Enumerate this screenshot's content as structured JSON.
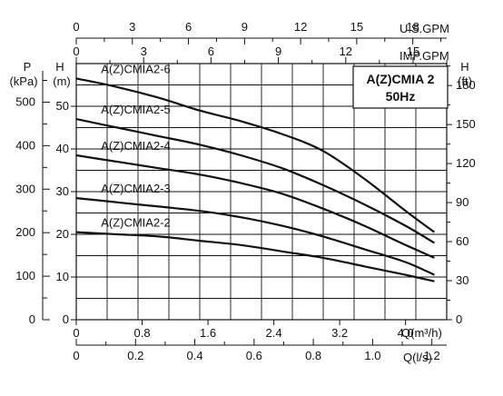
{
  "chart_data": {
    "type": "line",
    "title": "A(Z)CMIA 2",
    "subtitle": "50Hz",
    "units": {
      "pressure": "P",
      "pressure_unit": "(kPa)",
      "head": "H",
      "head_m_unit": "(m)",
      "head_ft": "H",
      "head_ft_unit": "(ft)",
      "usgpm": "U.S.GPM",
      "impgpm": "IMP.GPM",
      "q_m3h": "Q(m³/h)",
      "q_ls": "Q(l/s)"
    },
    "axes": {
      "x_m3h": {
        "min": 0,
        "max": 4.5,
        "ticks": [
          "0",
          "0.8",
          "1.6",
          "2.4",
          "3.2",
          "4.0"
        ]
      },
      "x_ls": {
        "ticks": [
          "0",
          "0.2",
          "0.4",
          "0.6",
          "0.8",
          "1.0",
          "1.2"
        ]
      },
      "x_usgpm": {
        "ticks": [
          "0",
          "3",
          "6",
          "9",
          "12",
          "15",
          "18"
        ]
      },
      "x_impgpm": {
        "ticks": [
          "0",
          "3",
          "6",
          "9",
          "12",
          "15"
        ]
      },
      "y_head_m": {
        "min": 0,
        "max": 60,
        "ticks": [
          "0",
          "10",
          "20",
          "30",
          "40",
          "50"
        ]
      },
      "y_pressure_kpa": {
        "ticks": [
          "0",
          "100",
          "200",
          "300",
          "400",
          "500"
        ]
      },
      "y_head_ft": {
        "ticks": [
          "0",
          "30",
          "60",
          "90",
          "120",
          "150",
          "180"
        ]
      }
    },
    "grid": true,
    "series": [
      {
        "name": "A(Z)CMIA2-6",
        "x": [
          0,
          0.5,
          1.0,
          1.5,
          2.0,
          2.5,
          3.0,
          3.5,
          4.0,
          4.35
        ],
        "y": [
          56.5,
          54.5,
          52.0,
          49.0,
          46.5,
          43.5,
          39.5,
          33.0,
          25.5,
          20.5
        ]
      },
      {
        "name": "A(Z)CMIA2-5",
        "x": [
          0,
          0.5,
          1.0,
          1.5,
          2.0,
          2.5,
          3.0,
          3.5,
          4.0,
          4.35
        ],
        "y": [
          47.0,
          45.0,
          43.0,
          41.0,
          38.5,
          35.5,
          31.5,
          27.0,
          22.0,
          18.0
        ]
      },
      {
        "name": "A(Z)CMIA2-4",
        "x": [
          0,
          0.5,
          1.0,
          1.5,
          2.0,
          2.5,
          3.0,
          3.5,
          4.0,
          4.35
        ],
        "y": [
          38.5,
          37.0,
          35.5,
          34.0,
          32.0,
          29.5,
          26.0,
          22.0,
          17.5,
          14.5
        ]
      },
      {
        "name": "A(Z)CMIA2-3",
        "x": [
          0,
          0.5,
          1.0,
          1.5,
          2.0,
          2.5,
          3.0,
          3.5,
          4.0,
          4.35
        ],
        "y": [
          28.5,
          27.5,
          26.5,
          25.5,
          24.0,
          22.0,
          19.5,
          16.5,
          13.5,
          10.5
        ]
      },
      {
        "name": "A(Z)CMIA2-2",
        "x": [
          0,
          0.5,
          1.0,
          1.5,
          2.0,
          2.5,
          3.0,
          3.5,
          4.0,
          4.35
        ],
        "y": [
          20.5,
          20.0,
          19.5,
          18.5,
          17.5,
          16.0,
          14.5,
          12.5,
          10.5,
          9.0
        ]
      }
    ]
  }
}
